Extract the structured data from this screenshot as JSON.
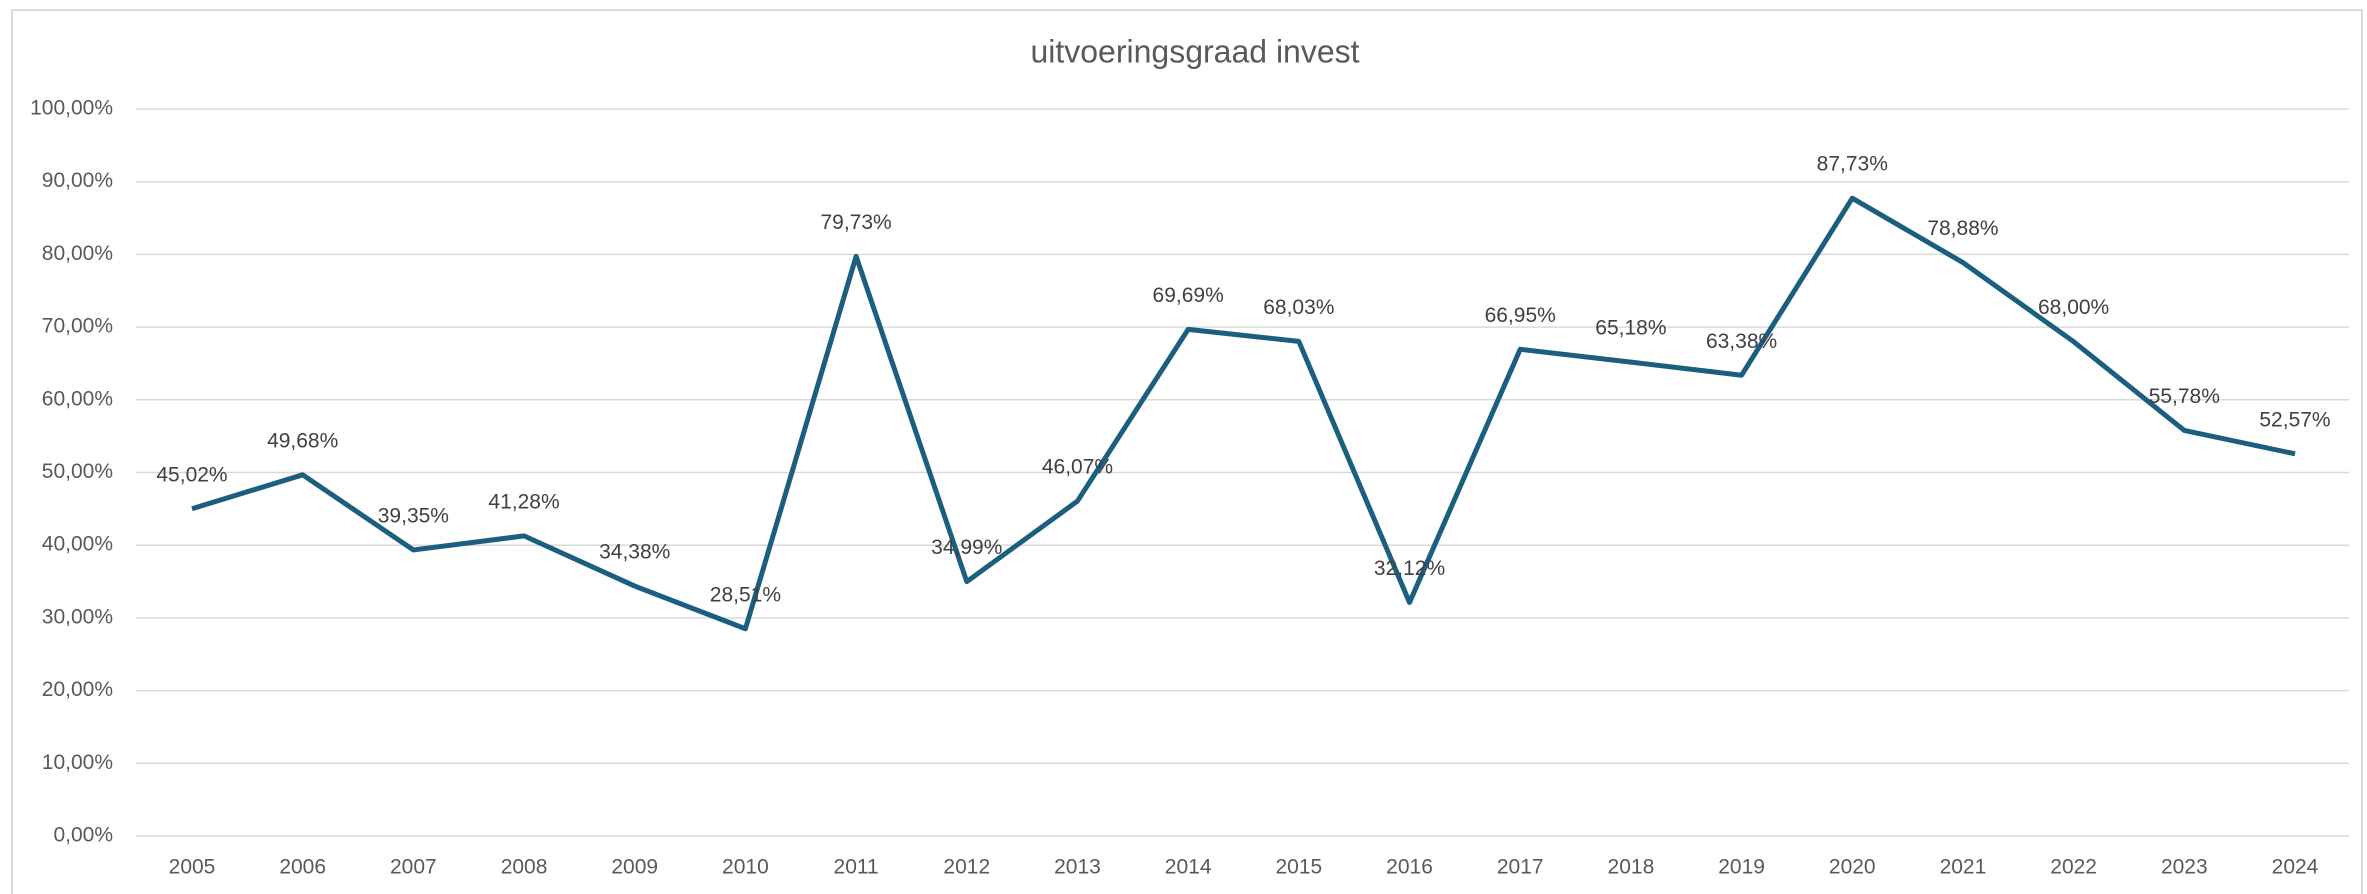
{
  "chart_data": {
    "type": "line",
    "title": "uitvoeringsgraad invest",
    "categories": [
      "2005",
      "2006",
      "2007",
      "2008",
      "2009",
      "2010",
      "2011",
      "2012",
      "2013",
      "2014",
      "2015",
      "2016",
      "2017",
      "2018",
      "2019",
      "2020",
      "2021",
      "2022",
      "2023",
      "2024"
    ],
    "series": [
      {
        "name": "uitvoeringsgraad invest",
        "color": "#1b5e80",
        "values": [
          45.02,
          49.68,
          39.35,
          41.28,
          34.38,
          28.51,
          79.73,
          34.99,
          46.07,
          69.69,
          68.03,
          32.12,
          66.95,
          65.18,
          63.38,
          87.73,
          78.88,
          68.0,
          55.78,
          52.57
        ],
        "value_labels": [
          "45,02%",
          "49,68%",
          "39,35%",
          "41,28%",
          "34,38%",
          "28,51%",
          "79,73%",
          "34,99%",
          "46,07%",
          "69,69%",
          "68,03%",
          "32,12%",
          "66,95%",
          "65,18%",
          "63,38%",
          "87,73%",
          "78,88%",
          "68,00%",
          "55,78%",
          "52,57%"
        ]
      }
    ],
    "ylim": [
      0,
      100
    ],
    "yticks": [
      {
        "value": 0,
        "label": "0,00%"
      },
      {
        "value": 10,
        "label": "10,00%"
      },
      {
        "value": 20,
        "label": "20,00%"
      },
      {
        "value": 30,
        "label": "30,00%"
      },
      {
        "value": 40,
        "label": "40,00%"
      },
      {
        "value": 50,
        "label": "50,00%"
      },
      {
        "value": 60,
        "label": "60,00%"
      },
      {
        "value": 70,
        "label": "70,00%"
      },
      {
        "value": 80,
        "label": "80,00%"
      },
      {
        "value": 90,
        "label": "90,00%"
      },
      {
        "value": 100,
        "label": "100,00%"
      }
    ],
    "grid": true
  }
}
